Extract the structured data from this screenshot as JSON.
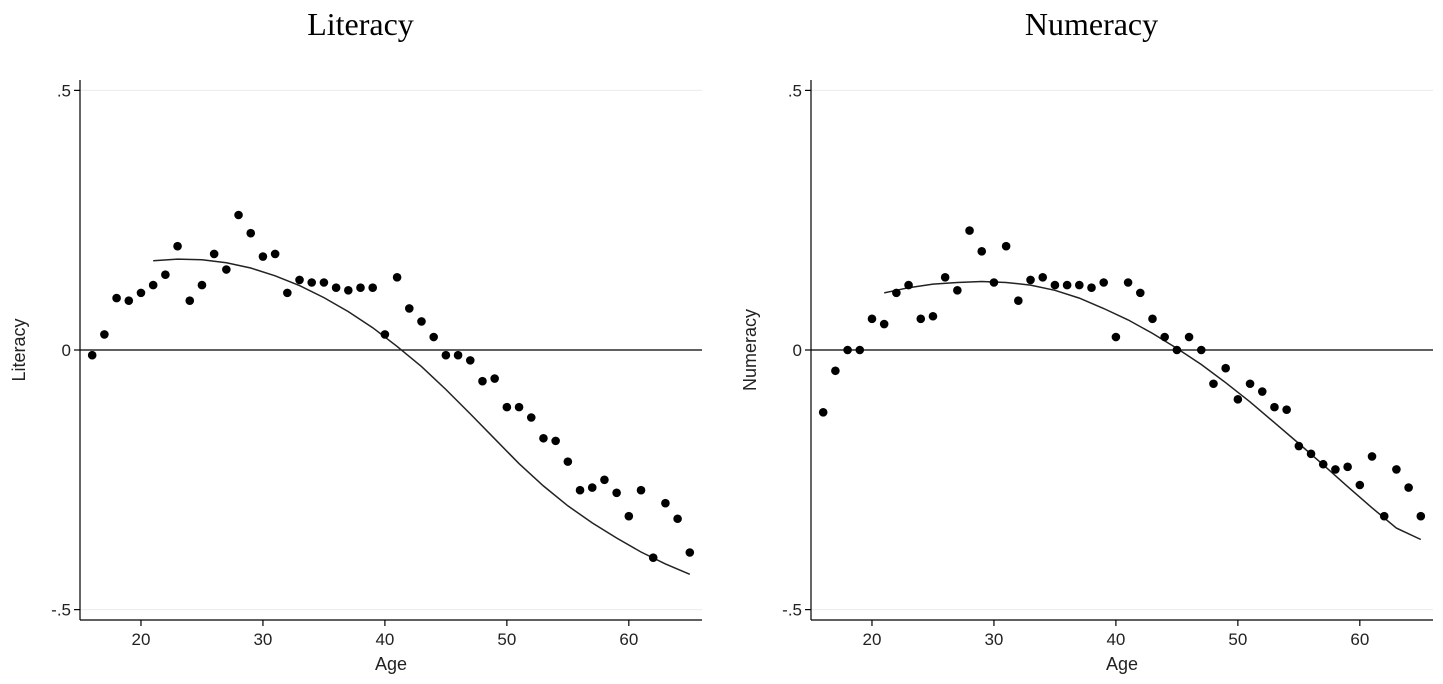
{
  "chart_data": [
    {
      "type": "scatter",
      "title": "Literacy",
      "xlabel": "Age",
      "ylabel": "Literacy",
      "xlim": [
        15,
        66
      ],
      "ylim": [
        -0.52,
        0.52
      ],
      "xticks": [
        20,
        30,
        40,
        50,
        60
      ],
      "xtick_labels": [
        "20",
        "30",
        "40",
        "50",
        "60"
      ],
      "yticks": [
        -0.5,
        0,
        0.5
      ],
      "ytick_labels": [
        "-.5",
        "0",
        ".5"
      ],
      "grid": "horizontal",
      "reference_line_y": 0,
      "series": [
        {
          "type": "scatter",
          "x": [
            16,
            17,
            18,
            19,
            20,
            21,
            22,
            23,
            24,
            25,
            26,
            27,
            28,
            29,
            30,
            31,
            32,
            33,
            34,
            35,
            36,
            37,
            38,
            39,
            40,
            41,
            42,
            43,
            44,
            45,
            46,
            47,
            48,
            49,
            50,
            51,
            52,
            53,
            54,
            55,
            56,
            57,
            58,
            59,
            60,
            61,
            62,
            63,
            64,
            65
          ],
          "y": [
            -0.01,
            0.03,
            0.1,
            0.095,
            0.11,
            0.125,
            0.145,
            0.2,
            0.095,
            0.125,
            0.185,
            0.155,
            0.26,
            0.225,
            0.18,
            0.185,
            0.11,
            0.135,
            0.13,
            0.13,
            0.12,
            0.115,
            0.12,
            0.12,
            0.03,
            0.14,
            0.08,
            0.055,
            0.025,
            -0.01,
            -0.01,
            -0.02,
            -0.06,
            -0.055,
            -0.11,
            -0.11,
            -0.13,
            -0.17,
            -0.175,
            -0.215,
            -0.27,
            -0.265,
            -0.25,
            -0.275,
            -0.32,
            -0.27,
            -0.4,
            -0.295,
            -0.325,
            -0.39
          ]
        },
        {
          "type": "line",
          "x": [
            21,
            23,
            25,
            27,
            29,
            31,
            33,
            35,
            37,
            39,
            41,
            43,
            45,
            47,
            49,
            51,
            53,
            55,
            57,
            59,
            61,
            63,
            65
          ],
          "y": [
            0.172,
            0.175,
            0.174,
            0.168,
            0.158,
            0.143,
            0.124,
            0.101,
            0.074,
            0.043,
            0.007,
            -0.032,
            -0.076,
            -0.123,
            -0.171,
            -0.219,
            -0.262,
            -0.3,
            -0.333,
            -0.362,
            -0.389,
            -0.412,
            -0.432
          ]
        }
      ]
    },
    {
      "type": "scatter",
      "title": "Numeracy",
      "xlabel": "Age",
      "ylabel": "Numeracy",
      "xlim": [
        15,
        66
      ],
      "ylim": [
        -0.52,
        0.52
      ],
      "xticks": [
        20,
        30,
        40,
        50,
        60
      ],
      "xtick_labels": [
        "20",
        "30",
        "40",
        "50",
        "60"
      ],
      "yticks": [
        -0.5,
        0,
        0.5
      ],
      "ytick_labels": [
        "-.5",
        "0",
        ".5"
      ],
      "grid": "horizontal",
      "reference_line_y": 0,
      "series": [
        {
          "type": "scatter",
          "x": [
            16,
            17,
            18,
            19,
            20,
            21,
            22,
            23,
            24,
            25,
            26,
            27,
            28,
            29,
            30,
            31,
            32,
            33,
            34,
            35,
            36,
            37,
            38,
            39,
            40,
            41,
            42,
            43,
            44,
            45,
            46,
            47,
            48,
            49,
            50,
            51,
            52,
            53,
            54,
            55,
            56,
            57,
            58,
            59,
            60,
            61,
            62,
            63,
            64,
            65
          ],
          "y": [
            -0.12,
            -0.04,
            0,
            0,
            0.06,
            0.05,
            0.11,
            0.125,
            0.06,
            0.065,
            0.14,
            0.115,
            0.23,
            0.19,
            0.13,
            0.2,
            0.095,
            0.135,
            0.14,
            0.125,
            0.125,
            0.125,
            0.12,
            0.13,
            0.025,
            0.13,
            0.11,
            0.06,
            0.025,
            0,
            0.025,
            0,
            -0.065,
            -0.035,
            -0.095,
            -0.065,
            -0.08,
            -0.11,
            -0.115,
            -0.185,
            -0.2,
            -0.22,
            -0.23,
            -0.225,
            -0.26,
            -0.205,
            -0.32,
            -0.23,
            -0.265,
            -0.32
          ]
        },
        {
          "type": "line",
          "x": [
            21,
            23,
            25,
            27,
            29,
            31,
            33,
            35,
            37,
            39,
            41,
            43,
            45,
            47,
            49,
            51,
            53,
            55,
            57,
            59,
            61,
            63,
            65
          ],
          "y": [
            0.11,
            0.12,
            0.127,
            0.13,
            0.132,
            0.13,
            0.125,
            0.115,
            0.1,
            0.08,
            0.058,
            0.032,
            0.003,
            -0.028,
            -0.063,
            -0.1,
            -0.14,
            -0.18,
            -0.221,
            -0.263,
            -0.304,
            -0.343,
            -0.365
          ]
        }
      ]
    }
  ]
}
